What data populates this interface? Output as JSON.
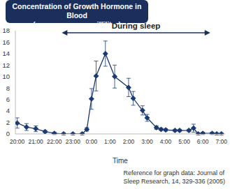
{
  "chart_data": {
    "type": "line",
    "title": "Concentration of Growth Hormone in Blood",
    "subtitle": "(nanograms per milliliter)",
    "x_label": "Time",
    "annotation": {
      "text": "During sleep",
      "x_range": [
        22.4,
        30.4
      ]
    },
    "source": [
      "Reference for graph data: Journal of",
      "Sleep Research, 14, 329-336 (2005)"
    ],
    "x": [
      20,
      20.5,
      21,
      21.5,
      22,
      22.5,
      23,
      23.5,
      23.75,
      24,
      24.25,
      24.75,
      25.25,
      26,
      26.25,
      26.75,
      27,
      27.5,
      27.75,
      28,
      28.5,
      28.75,
      29.25,
      29.5,
      29.75,
      30,
      30.5,
      30.75,
      31
    ],
    "values": [
      1.9,
      1.2,
      0.9,
      0.4,
      0.1,
      0,
      0,
      0,
      0.8,
      6.1,
      10.1,
      14,
      10,
      8.1,
      6.2,
      4.1,
      2.8,
      1.1,
      0.8,
      0.7,
      0.6,
      0.6,
      0.6,
      1.0,
      0,
      0.1,
      0.1,
      0,
      0
    ],
    "errors": [
      0.9,
      0.6,
      0.5,
      0.2,
      0.2,
      0.2,
      0.2,
      0.2,
      0.3,
      1.8,
      2.6,
      2.2,
      2.0,
      1.6,
      1.2,
      0.8,
      0.6,
      0.3,
      0.2,
      0.2,
      0.2,
      0.2,
      0.2,
      0.7,
      0.2,
      0.2,
      0.2,
      0.2,
      0.2
    ],
    "color": "#1b3a72",
    "marker": "diamond",
    "xlim": [
      19.9,
      31.2
    ],
    "xticks": [
      {
        "value": 20,
        "label": "20:00"
      },
      {
        "value": 21,
        "label": "21:00"
      },
      {
        "value": 22,
        "label": "22:00"
      },
      {
        "value": 23,
        "label": "23:00"
      },
      {
        "value": 24,
        "label": "0:00"
      },
      {
        "value": 25,
        "label": "1:00"
      },
      {
        "value": 26,
        "label": "2:00"
      },
      {
        "value": 27,
        "label": "3:00"
      },
      {
        "value": 28,
        "label": "4:00"
      },
      {
        "value": 29,
        "label": "5:00"
      },
      {
        "value": 30,
        "label": "6:00"
      },
      {
        "value": 31,
        "label": "7:00"
      }
    ],
    "ylim": [
      0,
      18
    ],
    "yticks": [
      0,
      2,
      4,
      6,
      8,
      10,
      12,
      14,
      16,
      18
    ],
    "grid": false
  }
}
